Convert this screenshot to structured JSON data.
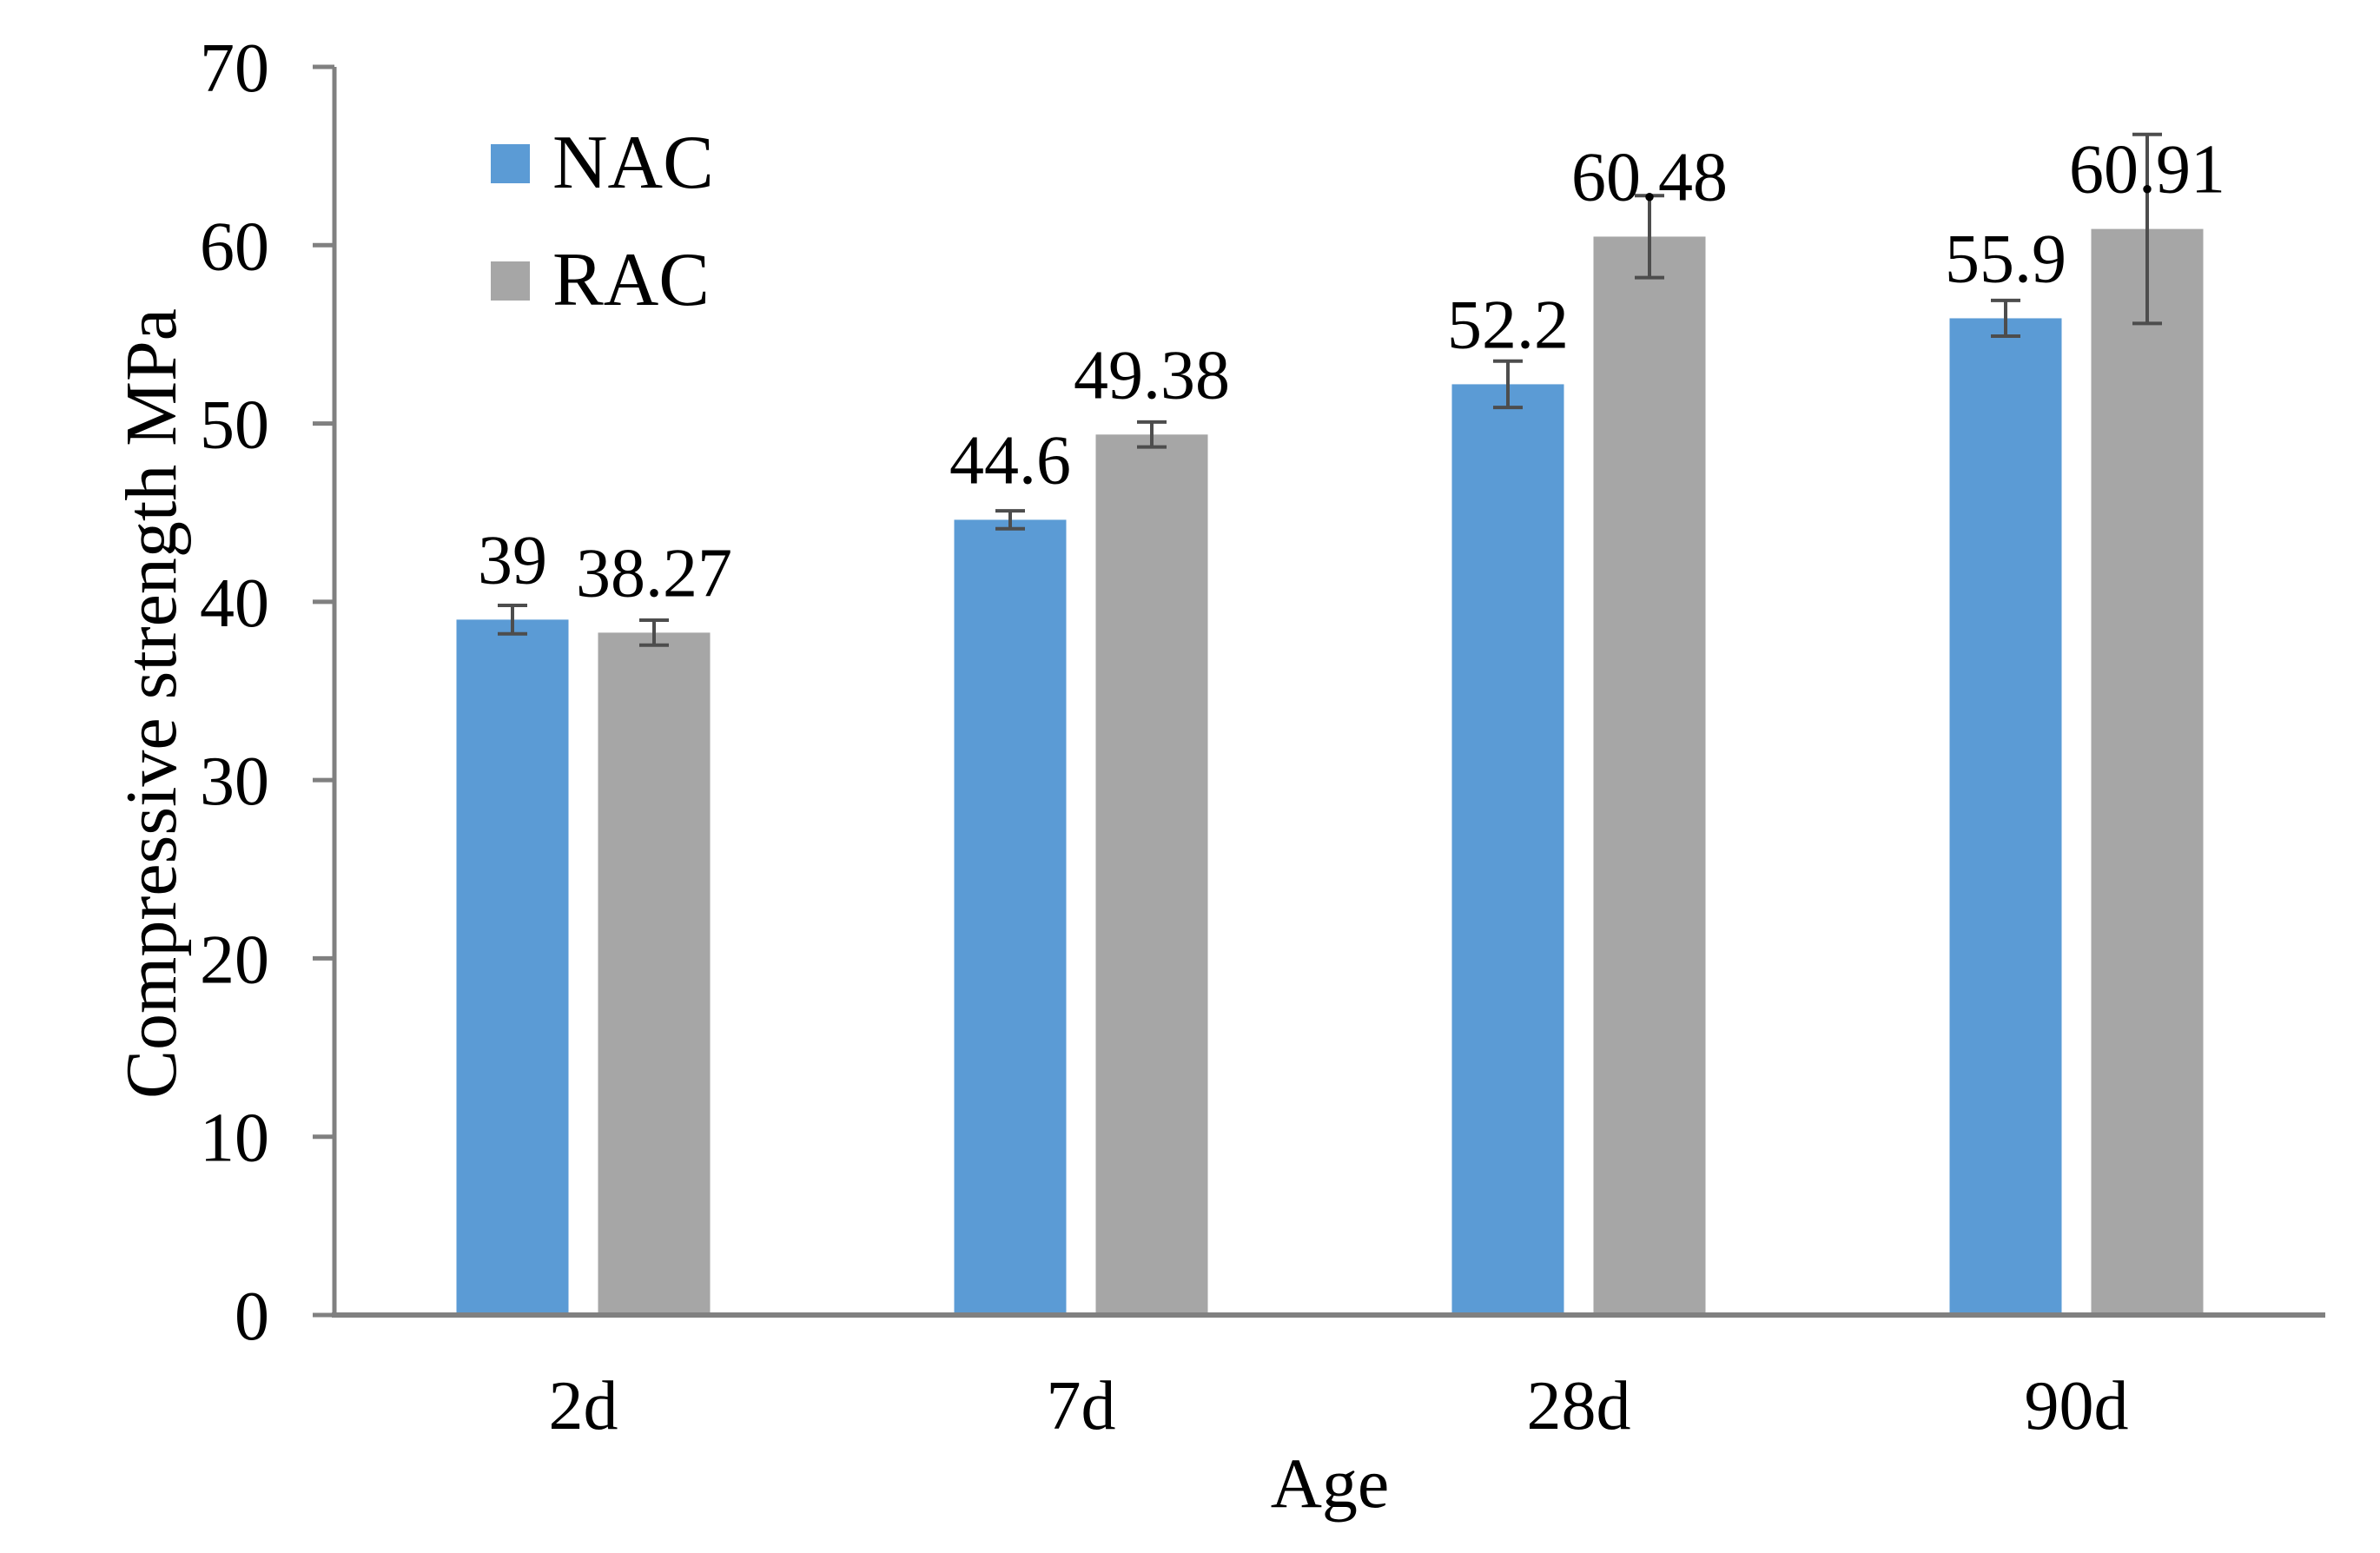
{
  "chart_data": {
    "type": "bar",
    "categories": [
      "2d",
      "7d",
      "28d",
      "90d"
    ],
    "series": [
      {
        "name": "NAC",
        "color": "#5B9BD5",
        "values": [
          39,
          44.6,
          52.2,
          55.9
        ],
        "errors": [
          0.8,
          0.5,
          1.3,
          1.0
        ]
      },
      {
        "name": "RAC",
        "color": "#A6A6A6",
        "values": [
          38.27,
          49.38,
          60.48,
          60.91
        ],
        "errors": [
          0.7,
          0.7,
          2.3,
          5.3
        ]
      }
    ],
    "title": "",
    "xlabel": "Age",
    "ylabel": "Compressive strength MPa",
    "ylim": [
      0,
      70
    ],
    "yticks": [
      0,
      10,
      20,
      30,
      40,
      50,
      60,
      70
    ],
    "grid": false,
    "data_labels": true,
    "error_bars": true,
    "legend_position": "top-left",
    "colors": {
      "axis": "#808080",
      "error_bar": "#4D4D4D",
      "text": "#000000",
      "background": "#FFFFFF"
    }
  }
}
